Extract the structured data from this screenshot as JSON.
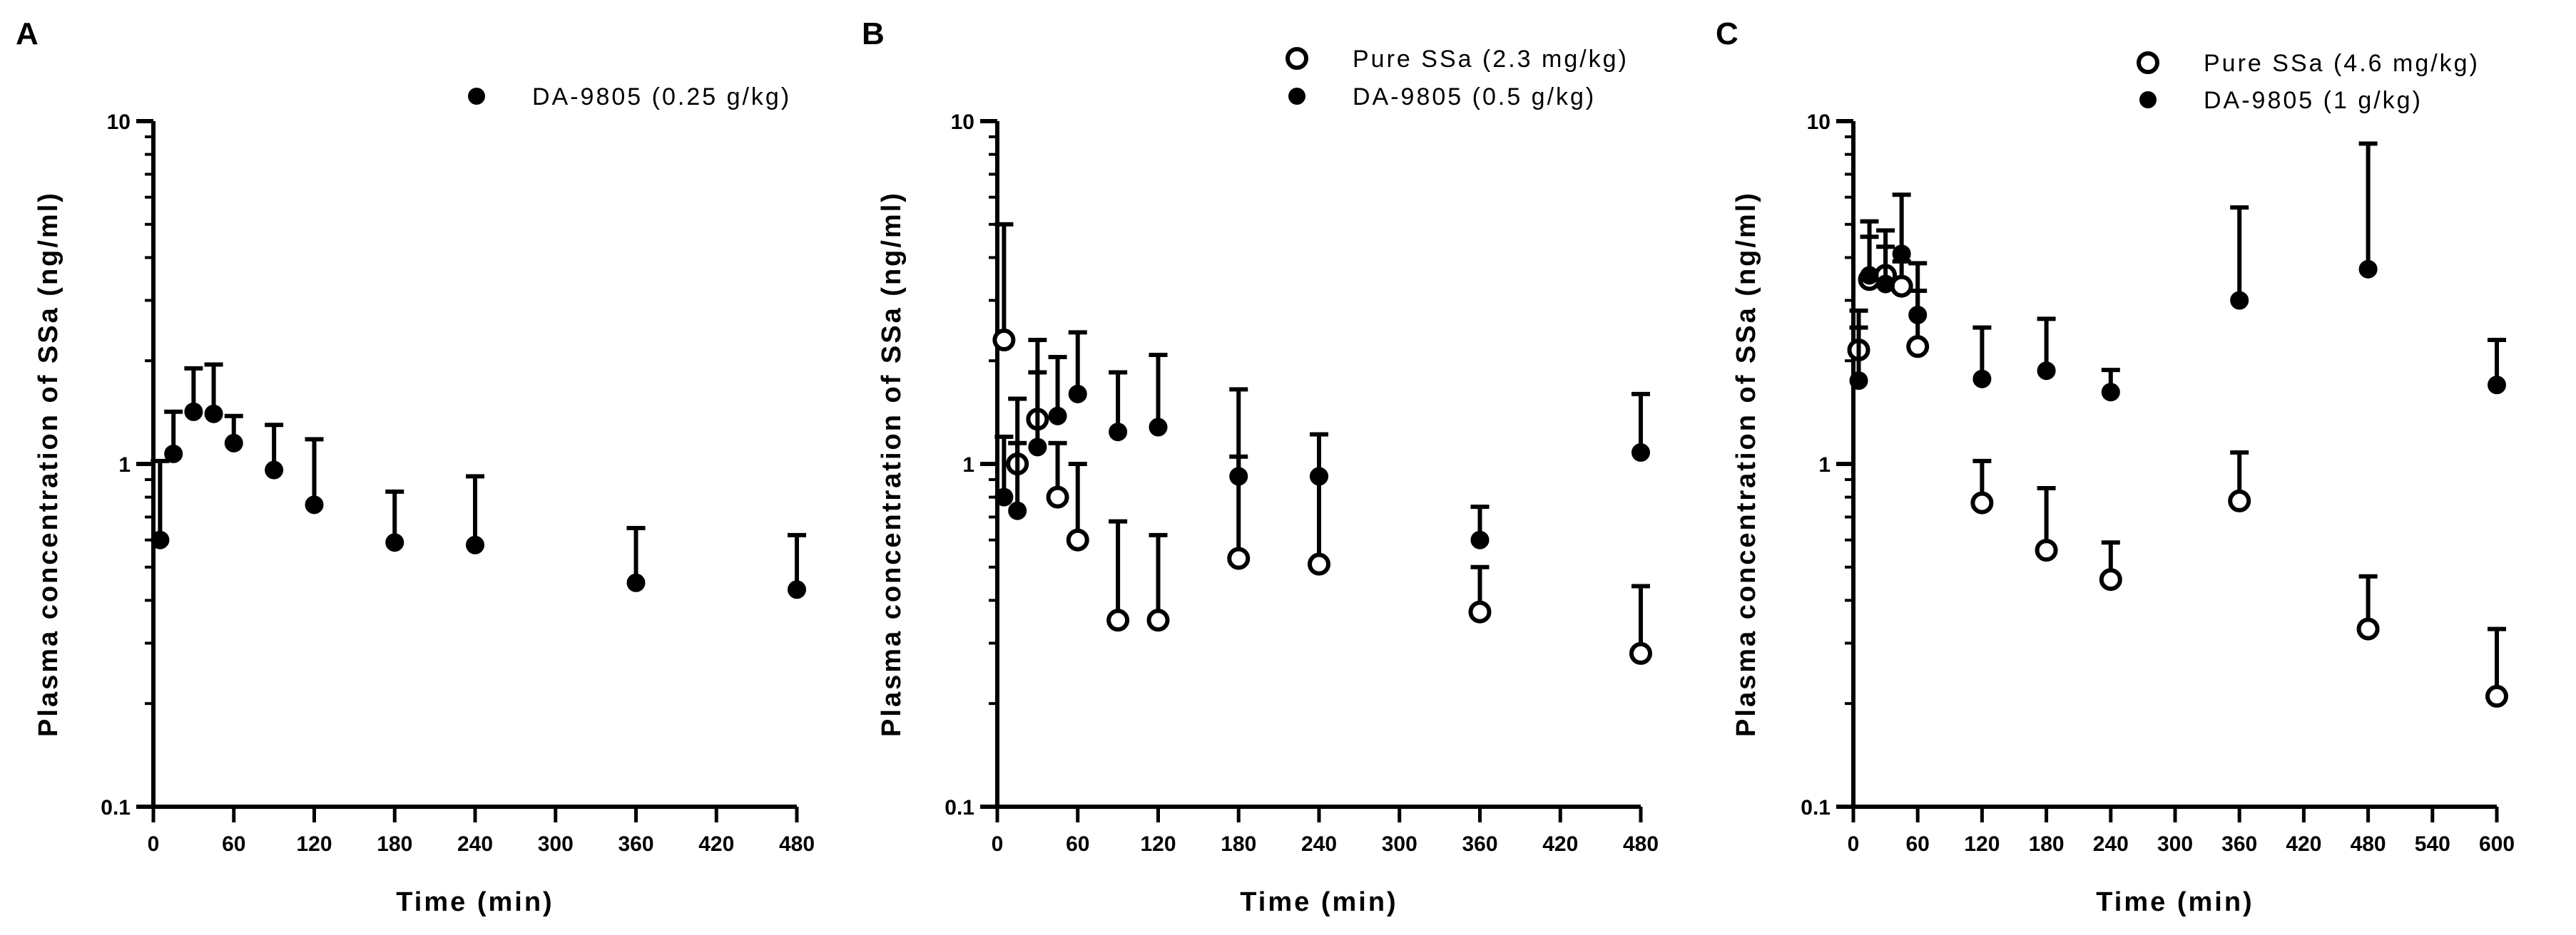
{
  "chart_data": [
    {
      "type": "scatter",
      "panel": "A",
      "xlabel": "Time (min)",
      "ylabel": "Plasma concentration of SSa (ng/ml)",
      "xlim": [
        0,
        480
      ],
      "xticks": [
        0,
        60,
        120,
        180,
        240,
        300,
        360,
        420,
        480
      ],
      "yscale": "log",
      "ylim": [
        0.1,
        10
      ],
      "yticks": [
        0.1,
        1,
        10
      ],
      "ytick_labels": [
        "0.1",
        "1",
        "10"
      ],
      "legend_position": "top-right",
      "series": [
        {
          "name": "DA-9805 (0.25 g/kg)",
          "marker": "filled-circle",
          "x": [
            5,
            15,
            30,
            45,
            60,
            90,
            120,
            180,
            240,
            360,
            480
          ],
          "y": [
            0.6,
            1.07,
            1.42,
            1.4,
            1.15,
            0.96,
            0.76,
            0.59,
            0.58,
            0.45,
            0.43
          ],
          "error_upper": [
            1.02,
            1.42,
            1.9,
            1.95,
            1.38,
            1.3,
            1.18,
            0.83,
            0.92,
            0.65,
            0.62
          ]
        }
      ]
    },
    {
      "type": "scatter",
      "panel": "B",
      "xlabel": "Time (min)",
      "ylabel": "Plasma concentration of SSa (ng/ml)",
      "xlim": [
        0,
        480
      ],
      "xticks": [
        0,
        60,
        120,
        180,
        240,
        300,
        360,
        420,
        480
      ],
      "yscale": "log",
      "ylim": [
        0.1,
        10
      ],
      "yticks": [
        0.1,
        1,
        10
      ],
      "ytick_labels": [
        "0.1",
        "1",
        "10"
      ],
      "legend_position": "top-right",
      "series": [
        {
          "name": "Pure SSa (2.3 mg/kg)",
          "marker": "open-circle",
          "x": [
            5,
            15,
            30,
            45,
            60,
            90,
            120,
            180,
            240,
            360,
            480
          ],
          "y": [
            2.3,
            1.0,
            1.35,
            0.8,
            0.6,
            0.35,
            0.35,
            0.53,
            0.51,
            0.37,
            0.28
          ],
          "error_upper": [
            5.0,
            1.55,
            2.3,
            1.15,
            1.0,
            0.68,
            0.62,
            1.05,
            0.92,
            0.5,
            0.44
          ]
        },
        {
          "name": "DA-9805 (0.5 g/kg)",
          "marker": "filled-circle",
          "x": [
            5,
            15,
            30,
            45,
            60,
            90,
            120,
            180,
            240,
            360,
            480
          ],
          "y": [
            0.8,
            0.73,
            1.12,
            1.38,
            1.6,
            1.24,
            1.28,
            0.92,
            0.92,
            0.6,
            1.08
          ],
          "error_upper": [
            1.2,
            1.15,
            1.85,
            2.05,
            2.42,
            1.85,
            2.08,
            1.65,
            1.22,
            0.75,
            1.6
          ]
        }
      ]
    },
    {
      "type": "scatter",
      "panel": "C",
      "xlabel": "Time (min)",
      "ylabel": "Plasma concentration of SSa (ng/ml)",
      "xlim": [
        0,
        600
      ],
      "xticks": [
        0,
        60,
        120,
        180,
        240,
        300,
        360,
        420,
        480,
        540,
        600
      ],
      "yscale": "log",
      "ylim": [
        0.1,
        10
      ],
      "yticks": [
        0.1,
        1,
        10
      ],
      "ytick_labels": [
        "0.1",
        "1",
        "10"
      ],
      "legend_position": "top-right",
      "series": [
        {
          "name": "Pure SSa (4.6 mg/kg)",
          "marker": "open-circle",
          "x": [
            5,
            15,
            30,
            45,
            60,
            120,
            180,
            240,
            360,
            480,
            600
          ],
          "y": [
            2.15,
            3.45,
            3.55,
            3.3,
            2.2,
            0.77,
            0.56,
            0.46,
            0.78,
            0.33,
            0.21
          ],
          "error_upper": [
            2.8,
            4.6,
            4.3,
            3.9,
            3.2,
            1.02,
            0.85,
            0.59,
            1.08,
            0.47,
            0.33
          ]
        },
        {
          "name": "DA-9805 (1 g/kg)",
          "marker": "filled-circle",
          "x": [
            5,
            15,
            30,
            45,
            60,
            120,
            180,
            240,
            360,
            480,
            600
          ],
          "y": [
            1.75,
            3.55,
            3.35,
            4.1,
            2.72,
            1.77,
            1.87,
            1.62,
            3.0,
            3.7,
            1.7
          ],
          "error_upper": [
            2.5,
            5.1,
            4.8,
            6.1,
            3.85,
            2.5,
            2.65,
            1.88,
            5.6,
            8.6,
            2.3
          ]
        }
      ]
    }
  ]
}
